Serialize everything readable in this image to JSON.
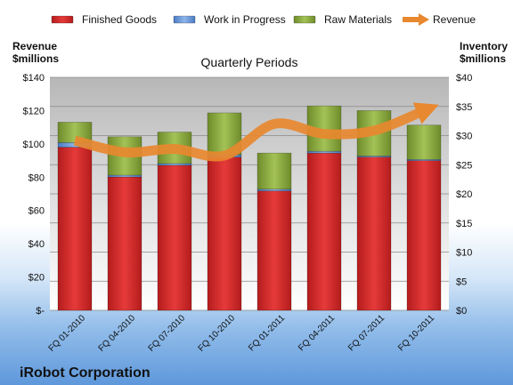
{
  "chart_data": {
    "type": "bar",
    "stacked": true,
    "title": "Quarterly Periods",
    "company": "iRobot Corporation",
    "categories": [
      "FQ 01-2010",
      "FQ 04-2010",
      "FQ 07-2010",
      "FQ 10-2010",
      "FQ 01-2011",
      "FQ 04-2011",
      "FQ 07-2011",
      "FQ 10-2011"
    ],
    "left_axis_label": [
      "Revenue",
      "$millions"
    ],
    "right_axis_label": [
      "Inventory",
      "$millions"
    ],
    "left_axis": {
      "min": 0,
      "max": 140,
      "step": 20,
      "tick_labels": [
        "$-",
        "$20",
        "$40",
        "$60",
        "$80",
        "$100",
        "$120",
        "$140"
      ]
    },
    "right_axis": {
      "min": 0,
      "max": 40,
      "step": 5,
      "tick_labels": [
        "$0",
        "$5",
        "$10",
        "$15",
        "$20",
        "$25",
        "$30",
        "$35",
        "$40"
      ]
    },
    "legend_position": "top",
    "grid": true,
    "series": [
      {
        "name": "Finished Goods",
        "color": "#d42a2a",
        "axis": "right",
        "kind": "bar",
        "values": [
          28.0,
          22.9,
          24.9,
          26.3,
          20.5,
          27.0,
          26.3,
          25.7
        ]
      },
      {
        "name": "Work in Progress",
        "color": "#5b8fd6",
        "axis": "right",
        "kind": "bar",
        "values": [
          0.8,
          0.3,
          0.3,
          0.4,
          0.3,
          0.3,
          0.2,
          0.2
        ]
      },
      {
        "name": "Raw Materials",
        "color": "#88a83c",
        "axis": "right",
        "kind": "bar",
        "values": [
          3.5,
          6.6,
          5.4,
          7.2,
          6.2,
          7.8,
          7.8,
          5.9
        ]
      },
      {
        "name": "Revenue",
        "color": "#e8882f",
        "axis": "left",
        "kind": "line",
        "values": [
          102,
          95,
          97,
          93,
          112,
          106,
          108,
          120
        ]
      }
    ]
  }
}
